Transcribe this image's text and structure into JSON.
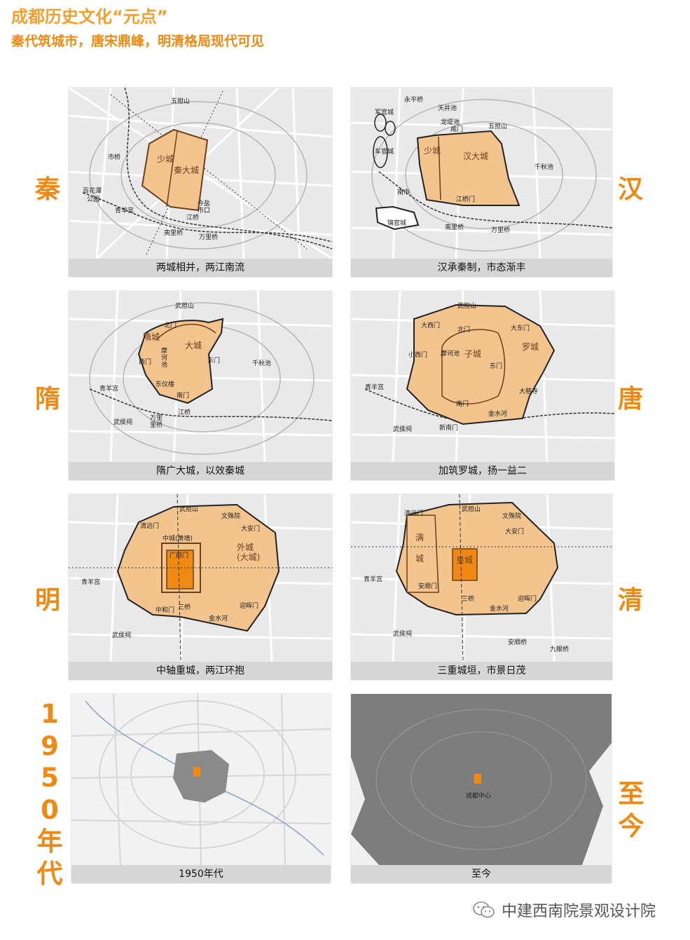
{
  "header": {
    "title": "成都历史文化“元点”",
    "subtitle": "秦代筑城市，唐宋鼎峰，明清格局现代可见"
  },
  "colors": {
    "accent": "#ee8a14",
    "city_fill": "#f4c48e",
    "core_fill": "#ee8a14",
    "map_bg": "#e9e9e9",
    "caption_bg": "#d6d6d6"
  },
  "eras": {
    "qin": "秦",
    "han": "汉",
    "sui": "隋",
    "tang": "唐",
    "ming": "明",
    "qing": "清",
    "y1950": "1950年代",
    "today": "至今"
  },
  "panels": {
    "qin": {
      "caption": "两城相并，两江南流",
      "labels": [
        "五担山",
        "少城",
        "秦大城",
        "市桥",
        "百花潭公园",
        "青羊宫",
        "江桥",
        "今盐市口",
        "夷里桥",
        "万里桥"
      ]
    },
    "han": {
      "caption": "汉承秦制，市态渐丰",
      "labels": [
        "永平桥",
        "天井池",
        "龙堤池",
        "咸门",
        "五担山",
        "军官城",
        "车官城",
        "少城",
        "汉大城",
        "千秋池",
        "南市",
        "江桥门",
        "锦官城",
        "夷里桥",
        "万里桥"
      ]
    },
    "sui": {
      "caption": "隋广大城，以效秦城",
      "labels": [
        "武担山",
        "北门",
        "隋城",
        "大城",
        "摩诃池",
        "西门",
        "东门",
        "千秋池",
        "东仪楼",
        "青羊宫",
        "南门",
        "武侯祠",
        "江桥",
        "万里桥"
      ]
    },
    "tang": {
      "caption": "加筑罗城，扬一益二",
      "labels": [
        "武担山",
        "大西门",
        "北门",
        "子城",
        "罗城",
        "小西门",
        "摩诃池",
        "东门",
        "大东门",
        "青羊宫",
        "南门",
        "大慈寺",
        "金水河",
        "武侯祠",
        "新南门"
      ]
    },
    "ming": {
      "caption": "中轴重城，两江环抱",
      "labels": [
        "武担山",
        "清远门",
        "文殊院",
        "大安门",
        "外城(大城)",
        "中城(萧墙)",
        "广府门",
        "青羊宫",
        "中和门",
        "三桥",
        "金水河",
        "迎晖门",
        "武侯祠"
      ]
    },
    "qing": {
      "caption": "三重城垣，市景日茂",
      "labels": [
        "武担山",
        "清远门",
        "文殊院",
        "满城",
        "大安门",
        "皇城",
        "青羊宫",
        "安顺门",
        "三桥",
        "金水河",
        "迎晖门",
        "武侯祠",
        "安顺桥",
        "九眼桥"
      ]
    },
    "y1950": {
      "caption": "1950年代"
    },
    "today": {
      "caption": "至今",
      "center_label": "成都中心"
    }
  },
  "watermark": {
    "text": "中建西南院景观设计院",
    "icon": "wechat-icon"
  }
}
